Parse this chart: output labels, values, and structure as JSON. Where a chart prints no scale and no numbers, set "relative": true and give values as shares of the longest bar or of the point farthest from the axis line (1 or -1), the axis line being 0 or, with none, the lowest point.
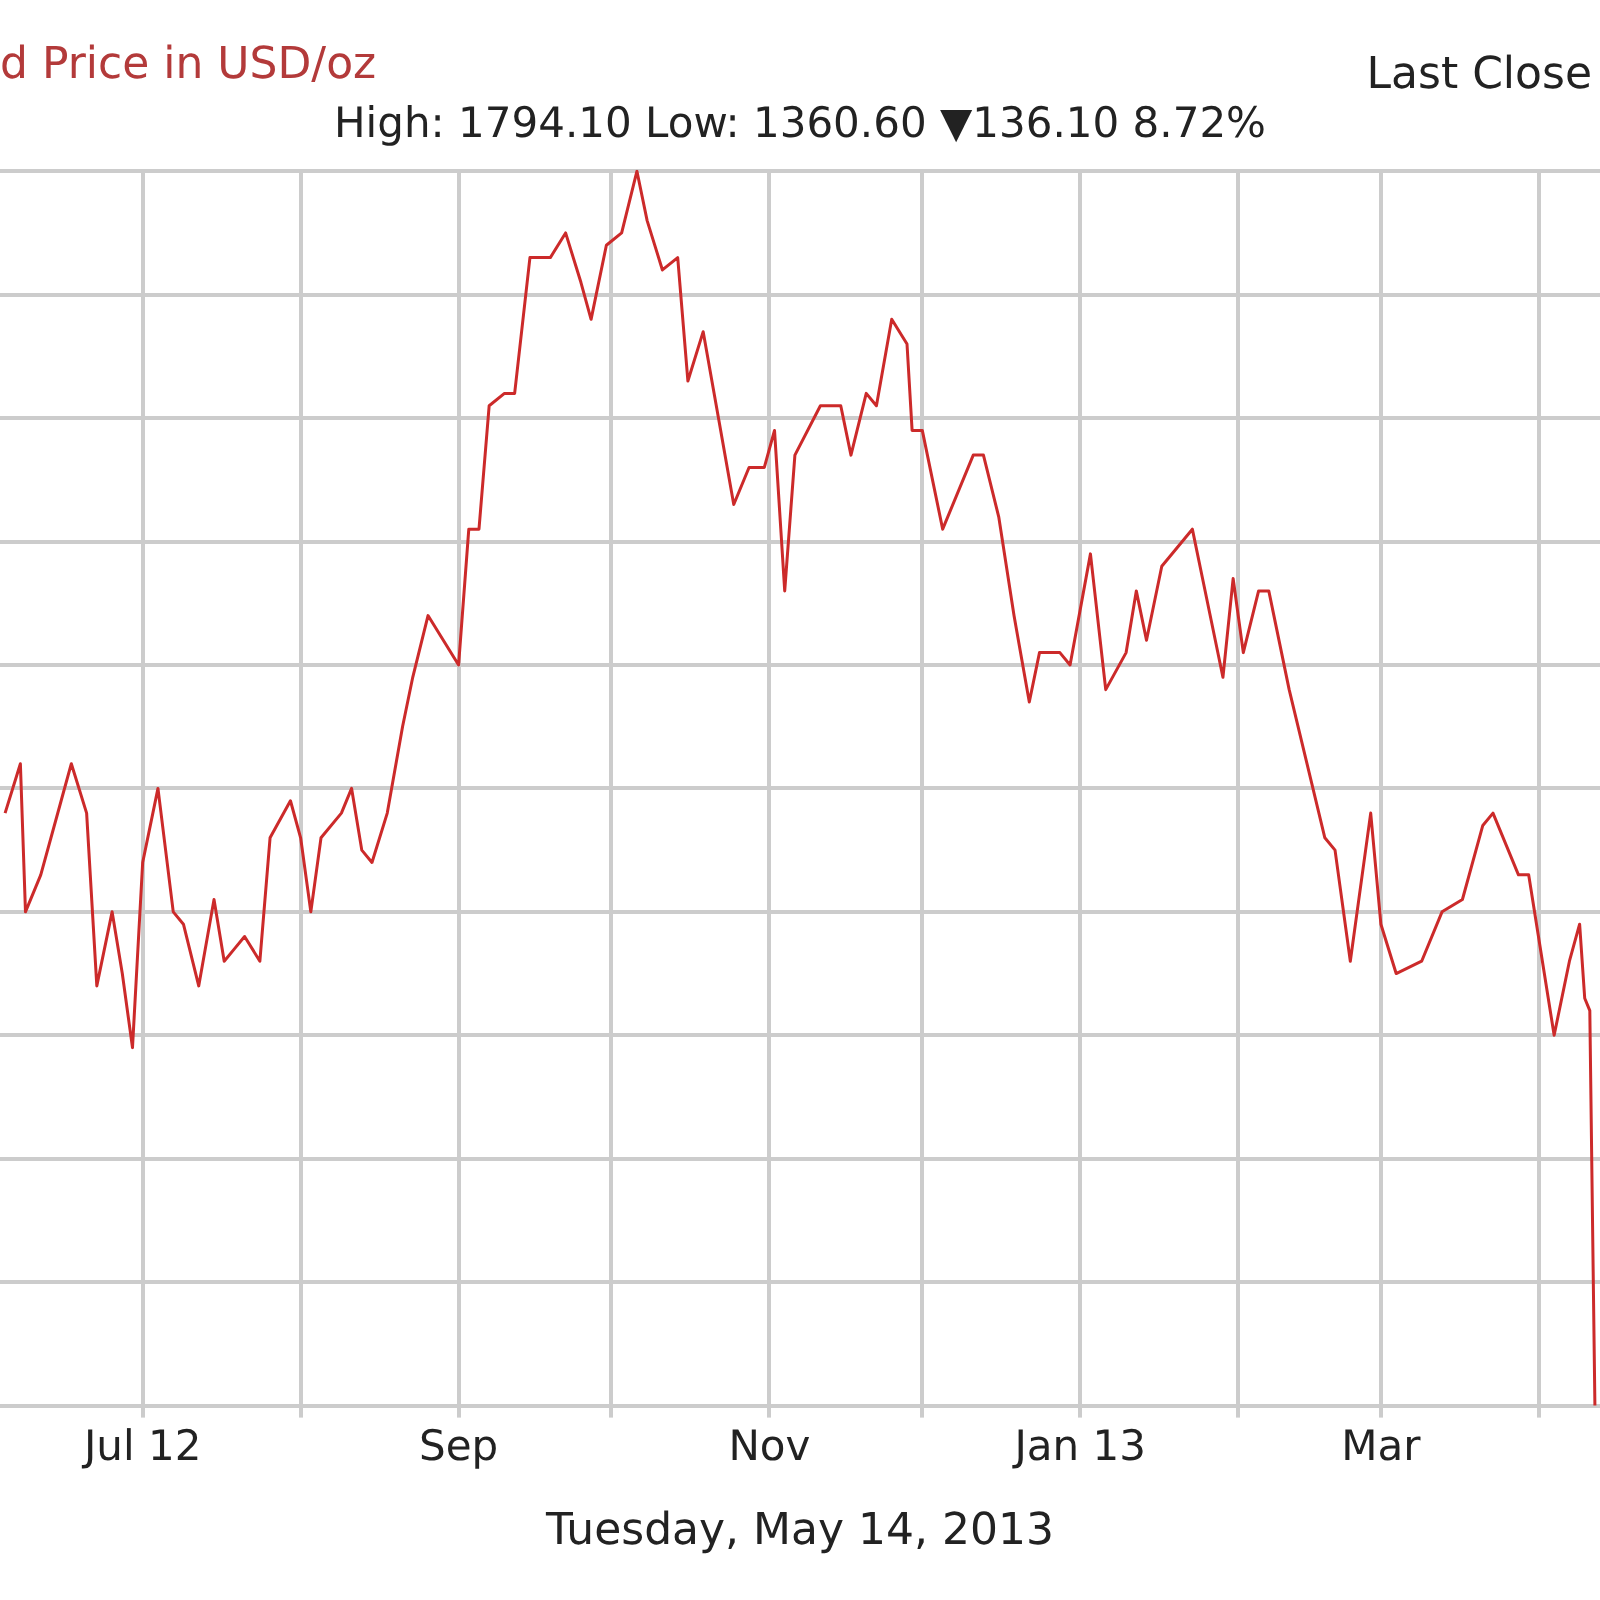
{
  "chart_data": {
    "type": "line",
    "title": "d Price in USD/oz",
    "subtitle": "High: 1794.10 Low: 1360.60 ▼136.10 8.72%",
    "annotations": [
      "Last Close",
      "Tuesday, May 14, 2013"
    ],
    "relative": true,
    "grid": true,
    "legend": false,
    "marker": "none",
    "line_style": "solid",
    "xlim": [
      "2012-06-03",
      "2013-04-13"
    ],
    "xticks": [
      {
        "value": "2012-07-01",
        "label": "Jul 12"
      },
      {
        "value": "2012-08-01",
        "label": null
      },
      {
        "value": "2012-09-01",
        "label": "Sep"
      },
      {
        "value": "2012-10-01",
        "label": null
      },
      {
        "value": "2012-11-01",
        "label": "Nov"
      },
      {
        "value": "2012-12-01",
        "label": null
      },
      {
        "value": "2013-01-01",
        "label": "Jan 13"
      },
      {
        "value": "2013-02-01",
        "label": null
      },
      {
        "value": "2013-03-01",
        "label": "Mar"
      },
      {
        "value": "2013-04-01",
        "label": null
      }
    ],
    "x": [
      "2012-06-04",
      "2012-06-07",
      "2012-06-08",
      "2012-06-11",
      "2012-06-15",
      "2012-06-17",
      "2012-06-20",
      "2012-06-22",
      "2012-06-25",
      "2012-06-27",
      "2012-06-29",
      "2012-07-01",
      "2012-07-04",
      "2012-07-07",
      "2012-07-09",
      "2012-07-12",
      "2012-07-15",
      "2012-07-17",
      "2012-07-19",
      "2012-07-21",
      "2012-07-24",
      "2012-07-26",
      "2012-07-30",
      "2012-08-01",
      "2012-08-03",
      "2012-08-05",
      "2012-08-09",
      "2012-08-11",
      "2012-08-13",
      "2012-08-15",
      "2012-08-18",
      "2012-08-21",
      "2012-08-23",
      "2012-08-26",
      "2012-08-29",
      "2012-09-01",
      "2012-09-03",
      "2012-09-05",
      "2012-09-07",
      "2012-09-10",
      "2012-09-12",
      "2012-09-15",
      "2012-09-19",
      "2012-09-22",
      "2012-09-25",
      "2012-09-27",
      "2012-09-30",
      "2012-10-03",
      "2012-10-06",
      "2012-10-08",
      "2012-10-11",
      "2012-10-14",
      "2012-10-16",
      "2012-10-19",
      "2012-10-22",
      "2012-10-25",
      "2012-10-28",
      "2012-10-31",
      "2012-11-02",
      "2012-11-04",
      "2012-11-06",
      "2012-11-11",
      "2012-11-15",
      "2012-11-17",
      "2012-11-20",
      "2012-11-22",
      "2012-11-25",
      "2012-11-28",
      "2012-11-29",
      "2012-12-01",
      "2012-12-05",
      "2012-12-11",
      "2012-12-13",
      "2012-12-16",
      "2012-12-19",
      "2012-12-22",
      "2012-12-24",
      "2012-12-28",
      "2012-12-30",
      "2013-01-03",
      "2013-01-06",
      "2013-01-10",
      "2013-01-12",
      "2013-01-14",
      "2013-01-17",
      "2013-01-23",
      "2013-01-25",
      "2013-01-29",
      "2013-01-31",
      "2013-02-02",
      "2013-02-05",
      "2013-02-07",
      "2013-02-11",
      "2013-02-18",
      "2013-02-20",
      "2013-02-23",
      "2013-02-27",
      "2013-03-01",
      "2013-03-04",
      "2013-03-09",
      "2013-03-13",
      "2013-03-17",
      "2013-03-21",
      "2013-03-23",
      "2013-03-28",
      "2013-03-30",
      "2013-04-04",
      "2013-04-07",
      "2013-04-09",
      "2013-04-10",
      "2013-04-11",
      "2013-04-12"
    ],
    "series": [
      {
        "color": "#cc2a2a",
        "values": [
          0.48,
          0.52,
          0.4,
          0.43,
          0.49,
          0.52,
          0.48,
          0.34,
          0.4,
          0.35,
          0.29,
          0.44,
          0.5,
          0.4,
          0.39,
          0.34,
          0.41,
          0.36,
          0.37,
          0.38,
          0.36,
          0.46,
          0.49,
          0.46,
          0.4,
          0.46,
          0.48,
          0.5,
          0.45,
          0.44,
          0.48,
          0.55,
          0.59,
          0.64,
          0.62,
          0.6,
          0.71,
          0.71,
          0.81,
          0.82,
          0.82,
          0.93,
          0.93,
          0.95,
          0.91,
          0.88,
          0.94,
          0.95,
          1,
          0.96,
          0.92,
          0.93,
          0.83,
          0.87,
          0.8,
          0.73,
          0.76,
          0.76,
          0.79,
          0.66,
          0.77,
          0.81,
          0.81,
          0.77,
          0.82,
          0.81,
          0.88,
          0.86,
          0.79,
          0.79,
          0.71,
          0.77,
          0.77,
          0.72,
          0.64,
          0.57,
          0.61,
          0.61,
          0.6,
          0.69,
          0.58,
          0.61,
          0.66,
          0.62,
          0.68,
          0.71,
          0.67,
          0.59,
          0.67,
          0.61,
          0.66,
          0.66,
          0.58,
          0.46,
          0.45,
          0.36,
          0.48,
          0.39,
          0.35,
          0.36,
          0.4,
          0.41,
          0.47,
          0.48,
          0.43,
          0.43,
          0.3,
          0.36,
          0.39,
          0.33,
          0.32,
          0
        ]
      }
    ]
  }
}
